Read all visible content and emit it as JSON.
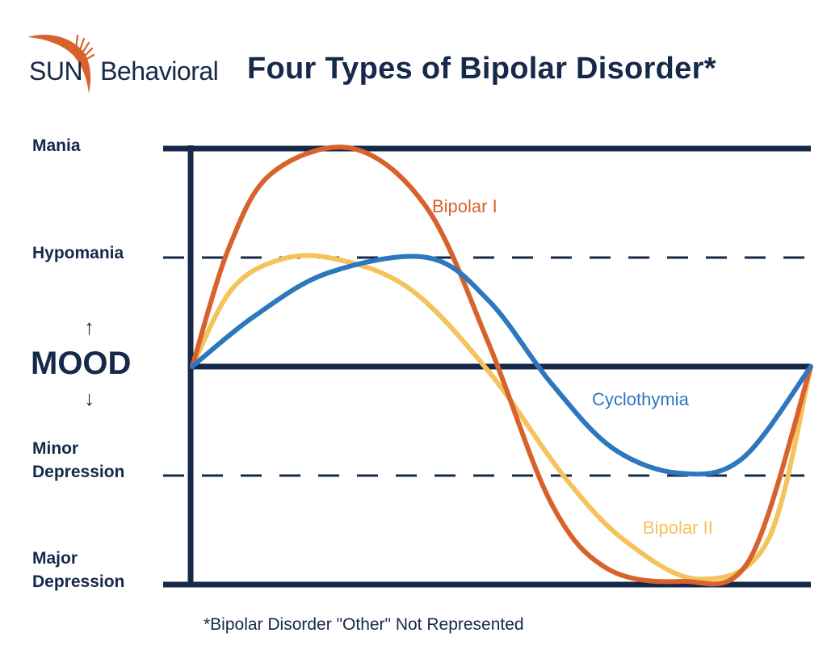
{
  "logo": {
    "sun": "SUN",
    "behavioral": "Behavioral",
    "accent_color": "#d8622c",
    "text_color": "#16294a"
  },
  "title": "Four Types of Bipolar Disorder*",
  "footnote": "*Bipolar Disorder \"Other\" Not Represented",
  "axis": {
    "mood_label": "MOOD",
    "up_arrow": "↑",
    "down_arrow": "↓"
  },
  "chart_data": {
    "type": "line",
    "title": "Four Types of Bipolar Disorder*",
    "ylabel": "MOOD",
    "xlabel": "",
    "levels": [
      {
        "label": "Mania",
        "value": 2,
        "style": "solid"
      },
      {
        "label": "Hypomania",
        "value": 1,
        "style": "dashed"
      },
      {
        "label": "",
        "value": 0,
        "style": "solid"
      },
      {
        "label": "Minor\nDepression",
        "value": -1,
        "style": "dashed"
      },
      {
        "label": "Major\nDepression",
        "value": -2,
        "style": "solid"
      }
    ],
    "ylim": [
      -2,
      2
    ],
    "xlim": [
      0,
      1
    ],
    "grid": false,
    "series": [
      {
        "name": "Bipolar I",
        "color": "#d8622c",
        "points": [
          [
            0,
            0
          ],
          [
            0.06,
            1.1
          ],
          [
            0.13,
            1.78
          ],
          [
            0.26,
            2.0
          ],
          [
            0.38,
            1.45
          ],
          [
            0.48,
            0.2
          ],
          [
            0.58,
            -1.25
          ],
          [
            0.67,
            -1.85
          ],
          [
            0.79,
            -1.97
          ],
          [
            0.9,
            -1.78
          ],
          [
            1,
            0
          ]
        ]
      },
      {
        "name": "Bipolar II",
        "color": "#f5c25c",
        "points": [
          [
            0,
            0
          ],
          [
            0.06,
            0.68
          ],
          [
            0.13,
            0.96
          ],
          [
            0.22,
            1.0
          ],
          [
            0.35,
            0.72
          ],
          [
            0.48,
            -0.05
          ],
          [
            0.6,
            -1.0
          ],
          [
            0.7,
            -1.6
          ],
          [
            0.82,
            -1.95
          ],
          [
            0.93,
            -1.6
          ],
          [
            1,
            0
          ]
        ]
      },
      {
        "name": "Cyclothymia",
        "color": "#2d77bf",
        "points": [
          [
            0,
            0
          ],
          [
            0.1,
            0.46
          ],
          [
            0.22,
            0.86
          ],
          [
            0.38,
            1.0
          ],
          [
            0.48,
            0.6
          ],
          [
            0.58,
            -0.15
          ],
          [
            0.68,
            -0.75
          ],
          [
            0.79,
            -0.98
          ],
          [
            0.89,
            -0.84
          ],
          [
            1,
            0
          ]
        ]
      }
    ],
    "legend_placement": "inline labels"
  }
}
